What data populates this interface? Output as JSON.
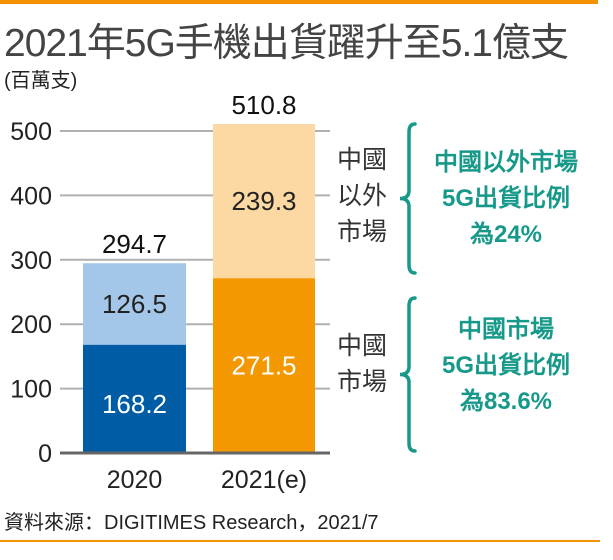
{
  "title": "2021年5G手機出貨躍升至5.1億支",
  "unit": "(百萬支)",
  "source": "資料來源：DIGITIMES Research，2021/7",
  "colors": {
    "accent": "#f39200",
    "china_2020": "#005da5",
    "non_china_2020": "#a4c6e8",
    "china_2021": "#f39800",
    "non_china_2021": "#fcd8a2",
    "note": "#17998a",
    "grid": "#b0b0b0",
    "axis": "#666666"
  },
  "chart_data": {
    "type": "bar",
    "stacked": true,
    "title": "2021年5G手機出貨躍升至5.1億支",
    "ylabel": "(百萬支)",
    "xlabel": "",
    "ylim": [
      0,
      500
    ],
    "yticks": [
      0,
      100,
      200,
      300,
      400,
      500
    ],
    "grid": true,
    "categories": [
      "2020",
      "2021(e)"
    ],
    "series": [
      {
        "name": "中國市場",
        "values": [
          168.2,
          271.5
        ]
      },
      {
        "name": "中國以外市場",
        "values": [
          126.5,
          239.3
        ]
      }
    ],
    "totals": [
      294.7,
      510.8
    ],
    "segment_labels": [
      {
        "series": "中國以外市場",
        "lines": [
          "中國",
          "以外",
          "市場"
        ]
      },
      {
        "series": "中國市場",
        "lines": [
          "中國",
          "市場"
        ]
      }
    ],
    "annotations": [
      {
        "target": "中國以外市場",
        "lines": [
          "中國以外市場",
          "5G出貨比例",
          "為24%"
        ]
      },
      {
        "target": "中國市場",
        "lines": [
          "中國市場",
          "5G出貨比例",
          "為83.6%"
        ]
      }
    ]
  }
}
